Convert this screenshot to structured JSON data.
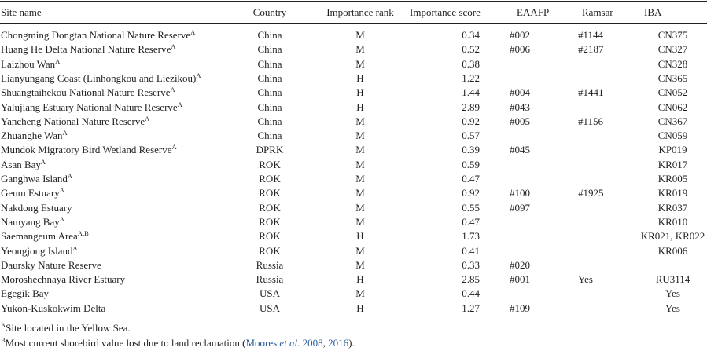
{
  "headers": {
    "site": "Site name",
    "country": "Country",
    "rank": "Importance rank",
    "score": "Importance score",
    "eaafp": "EAAFP",
    "ramsar": "Ramsar",
    "iba": "IBA"
  },
  "rows": [
    {
      "site": "Chongming Dongtan National Nature Reserve",
      "sup": "A",
      "country": "China",
      "rank": "M",
      "score": "0.34",
      "eaafp": "#002",
      "ramsar": "#1144",
      "iba": "CN375"
    },
    {
      "site": "Huang He Delta National Nature Reserve",
      "sup": "A",
      "country": "China",
      "rank": "M",
      "score": "0.52",
      "eaafp": "#006",
      "ramsar": "#2187",
      "iba": "CN327"
    },
    {
      "site": "Laizhou Wan",
      "sup": "A",
      "country": "China",
      "rank": "M",
      "score": "0.38",
      "eaafp": "",
      "ramsar": "",
      "iba": "CN328"
    },
    {
      "site": "Lianyungang Coast (Linhongkou and Liezikou)",
      "sup": "A",
      "country": "China",
      "rank": "H",
      "score": "1.22",
      "eaafp": "",
      "ramsar": "",
      "iba": "CN365"
    },
    {
      "site": "Shuangtaihekou National Nature Reserve",
      "sup": "A",
      "country": "China",
      "rank": "H",
      "score": "1.44",
      "eaafp": "#004",
      "ramsar": "#1441",
      "iba": "CN052"
    },
    {
      "site": "Yalujiang Estuary National Nature Reserve",
      "sup": "A",
      "country": "China",
      "rank": "H",
      "score": "2.89",
      "eaafp": "#043",
      "ramsar": "",
      "iba": "CN062"
    },
    {
      "site": "Yancheng National Nature Reserve",
      "sup": "A",
      "country": "China",
      "rank": "M",
      "score": "0.92",
      "eaafp": "#005",
      "ramsar": "#1156",
      "iba": "CN367"
    },
    {
      "site": "Zhuanghe Wan",
      "sup": "A",
      "country": "China",
      "rank": "M",
      "score": "0.57",
      "eaafp": "",
      "ramsar": "",
      "iba": "CN059"
    },
    {
      "site": "Mundok Migratory Bird Wetland Reserve",
      "sup": "A",
      "country": "DPRK",
      "rank": "M",
      "score": "0.39",
      "eaafp": "#045",
      "ramsar": "",
      "iba": "KP019"
    },
    {
      "site": "Asan Bay",
      "sup": "A",
      "country": "ROK",
      "rank": "M",
      "score": "0.59",
      "eaafp": "",
      "ramsar": "",
      "iba": "KR017"
    },
    {
      "site": "Ganghwa Island",
      "sup": "A",
      "country": "ROK",
      "rank": "M",
      "score": "0.47",
      "eaafp": "",
      "ramsar": "",
      "iba": "KR005"
    },
    {
      "site": "Geum Estuary",
      "sup": "A",
      "country": "ROK",
      "rank": "M",
      "score": "0.92",
      "eaafp": "#100",
      "ramsar": "#1925",
      "iba": "KR019"
    },
    {
      "site": "Nakdong Estuary",
      "sup": "",
      "country": "ROK",
      "rank": "M",
      "score": "0.55",
      "eaafp": "#097",
      "ramsar": "",
      "iba": "KR037"
    },
    {
      "site": "Namyang Bay",
      "sup": "A",
      "country": "ROK",
      "rank": "M",
      "score": "0.47",
      "eaafp": "",
      "ramsar": "",
      "iba": "KR010"
    },
    {
      "site": "Saemangeum Area",
      "sup": "A,B",
      "country": "ROK",
      "rank": "H",
      "score": "1.73",
      "eaafp": "",
      "ramsar": "",
      "iba": "KR021, KR022"
    },
    {
      "site": "Yeongjong Island",
      "sup": "A",
      "country": "ROK",
      "rank": "M",
      "score": "0.41",
      "eaafp": "",
      "ramsar": "",
      "iba": "KR006"
    },
    {
      "site": "Daursky Nature Reserve",
      "sup": "",
      "country": "Russia",
      "rank": "M",
      "score": "0.33",
      "eaafp": "#020",
      "ramsar": "",
      "iba": ""
    },
    {
      "site": "Moroshechnaya River Estuary",
      "sup": "",
      "country": "Russia",
      "rank": "H",
      "score": "2.85",
      "eaafp": "#001",
      "ramsar": "Yes",
      "iba": "RU3114"
    },
    {
      "site": "Egegik Bay",
      "sup": "",
      "country": "USA",
      "rank": "M",
      "score": "0.44",
      "eaafp": "",
      "ramsar": "",
      "iba": "Yes"
    },
    {
      "site": "Yukon-Kuskokwim Delta",
      "sup": "",
      "country": "USA",
      "rank": "H",
      "score": "1.27",
      "eaafp": "#109",
      "ramsar": "",
      "iba": "Yes"
    }
  ],
  "footnotes": {
    "a_mark": "A",
    "a_text": "Site located in the Yellow Sea.",
    "b_mark": "B",
    "b_text_pre": "Most current shorebird value lost due to land reclamation (",
    "b_cite1_pre": "Moores ",
    "b_cite1_etal": "et al.",
    "b_cite1_year": " 2008",
    "b_sep": ", ",
    "b_cite2": "2016",
    "b_text_post": ")."
  }
}
